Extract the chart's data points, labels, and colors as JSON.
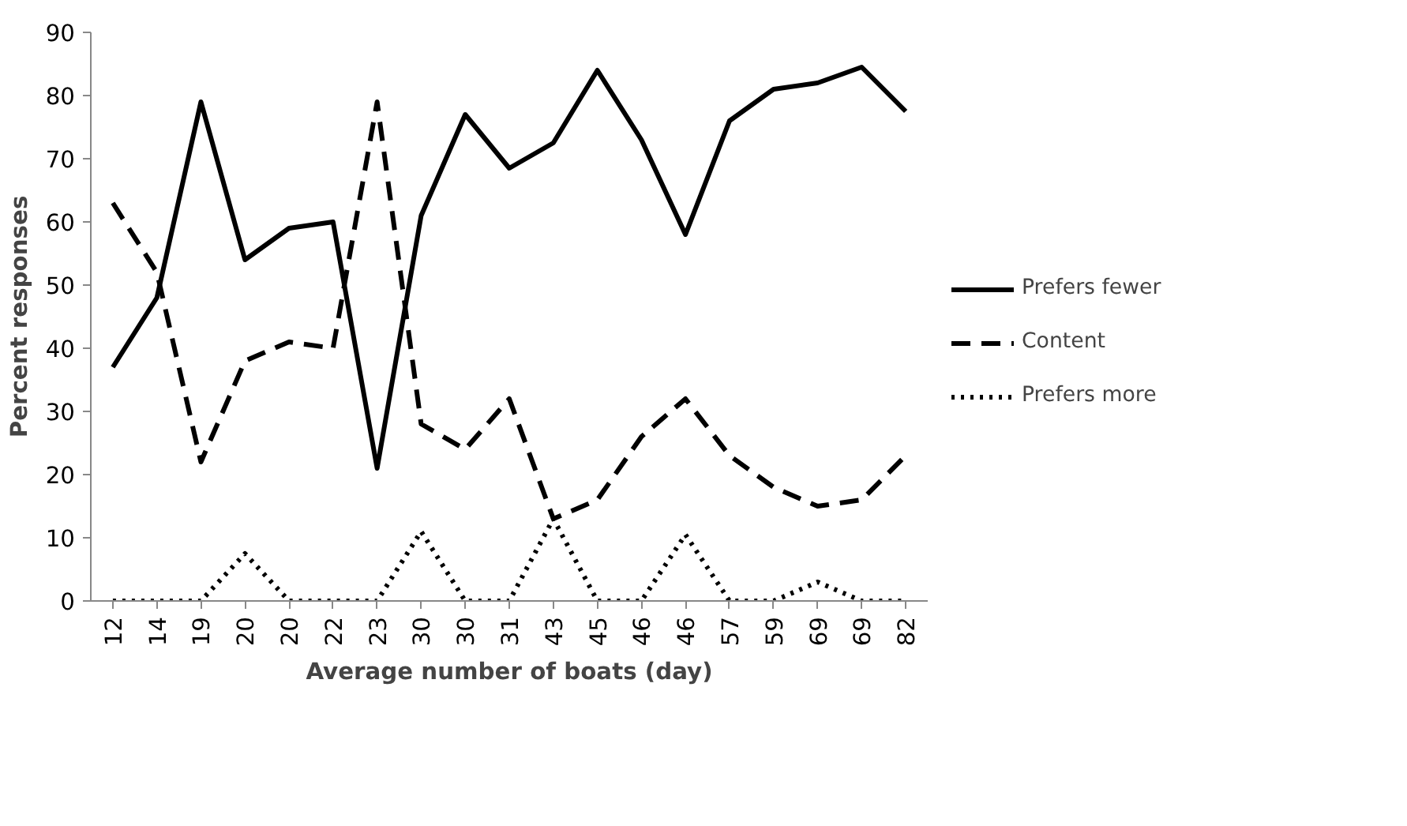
{
  "chart_data": {
    "type": "line",
    "xlabel": "Average number of boats (day)",
    "ylabel": "Percent responses",
    "categories": [
      "12",
      "14",
      "19",
      "20",
      "20",
      "22",
      "23",
      "30",
      "30",
      "31",
      "43",
      "45",
      "46",
      "46",
      "57",
      "59",
      "69",
      "69",
      "82"
    ],
    "series": [
      {
        "name": "Prefers fewer",
        "color": "#000000",
        "line_style": "solid",
        "values": [
          37,
          48,
          79,
          54,
          59,
          60,
          21,
          61,
          77,
          68.5,
          72.5,
          84,
          73,
          58,
          76,
          81,
          82,
          84.5,
          77.5
        ]
      },
      {
        "name": "Content",
        "color": "#000000",
        "line_style": "dashed",
        "values": [
          63,
          52,
          22,
          38,
          41,
          40,
          79,
          28,
          24,
          32,
          13,
          16,
          26,
          32,
          23,
          18,
          15,
          16,
          23
        ]
      },
      {
        "name": "Prefers more",
        "color": "#000000",
        "line_style": "dotted",
        "values": [
          0,
          0,
          0,
          7.5,
          0,
          0,
          0,
          11,
          0,
          0,
          13,
          0,
          0,
          10.5,
          0,
          0,
          3,
          0,
          0
        ]
      }
    ],
    "ylim": [
      0,
      90
    ],
    "yticks": [
      0,
      10,
      20,
      30,
      40,
      50,
      60,
      70,
      80,
      90
    ],
    "grid": false,
    "legend": "right",
    "marker": "none"
  }
}
